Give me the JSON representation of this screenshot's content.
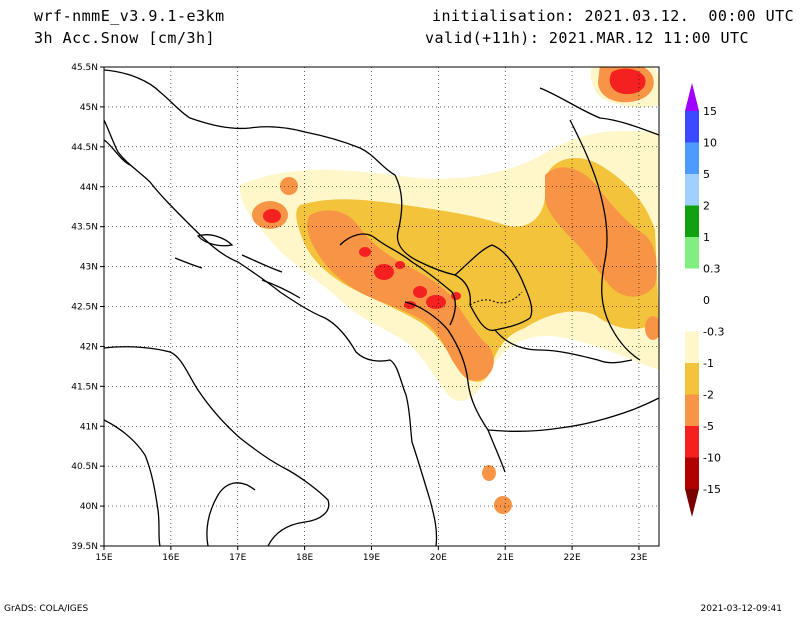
{
  "header": {
    "model": "wrf-nmmE_v3.9.1-e3km",
    "field": "3h Acc.Snow [cm/3h]",
    "init": "initialisation: 2021.03.12.  00:00 UTC",
    "valid": "valid(+11h): 2021.MAR.12 11:00 UTC"
  },
  "footer": {
    "left": "GrADS: COLA/IGES",
    "right": "2021-03-12-09:41"
  },
  "chart_data": {
    "type": "heatmap",
    "title": "3h Acc.Snow [cm/3h]",
    "x_ticks": [
      "15E",
      "16E",
      "17E",
      "18E",
      "19E",
      "20E",
      "21E",
      "22E",
      "23E"
    ],
    "y_ticks": [
      "45.5N",
      "45N",
      "44.5N",
      "44N",
      "43.5N",
      "43N",
      "42.5N",
      "42N",
      "41.5N",
      "41N",
      "40.5N",
      "40N",
      "39.5N"
    ],
    "xlim": [
      15,
      23.3
    ],
    "ylim": [
      39.5,
      45.5
    ],
    "legend_labels": [
      "15",
      "10",
      "5",
      "2",
      "1",
      "0.3",
      "0",
      "-0.3",
      "-1",
      "-2",
      "-5",
      "-10",
      "-15"
    ],
    "legend_colors": [
      "#a000ff",
      "#3a4bff",
      "#4c9bff",
      "#9fd0ff",
      "#10a010",
      "#80ee80",
      "#ffffff",
      "#ffffff",
      "#fff7c9",
      "#f3c33c",
      "#f79445",
      "#f52020",
      "#b00000",
      "#7a0000"
    ],
    "snow_colors": {
      "light": "#fff7c9",
      "moderate": "#f3c33c",
      "heavy": "#f79445",
      "severe": "#f52020"
    }
  }
}
